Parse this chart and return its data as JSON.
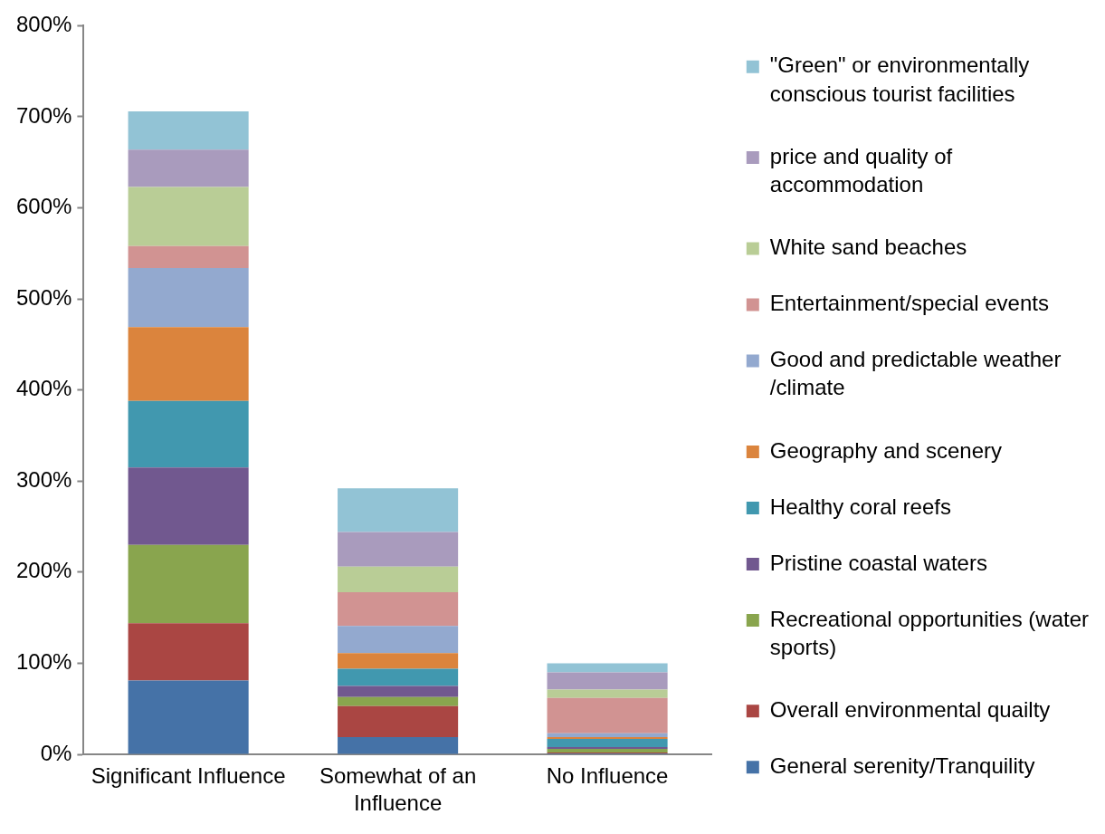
{
  "chart_data": {
    "type": "bar",
    "stacked": true,
    "legend": "right",
    "categories": [
      "Significant Influence",
      "Somewhat of an Influence",
      "No Influence"
    ],
    "ylim": [
      0,
      800
    ],
    "yticks": [
      {
        "value": 0,
        "label": "0%"
      },
      {
        "value": 100,
        "label": "100%"
      },
      {
        "value": 200,
        "label": "200%"
      },
      {
        "value": 300,
        "label": "300%"
      },
      {
        "value": 400,
        "label": "400%"
      },
      {
        "value": 500,
        "label": "500%"
      },
      {
        "value": 600,
        "label": "600%"
      },
      {
        "value": 700,
        "label": "700%"
      },
      {
        "value": 800,
        "label": "800%"
      }
    ],
    "series": [
      {
        "name": "General serenity/Tranquility",
        "color": "#4572a7",
        "values": [
          81,
          19,
          1
        ]
      },
      {
        "name": "Overall environmental quailty",
        "color": "#aa4643",
        "values": [
          63,
          34,
          1
        ]
      },
      {
        "name": "Recreational opportunities (water sports)",
        "color": "#89a54e",
        "values": [
          86,
          10,
          4
        ]
      },
      {
        "name": "Pristine coastal waters",
        "color": "#71588f",
        "values": [
          85,
          12,
          2
        ]
      },
      {
        "name": "Healthy coral reefs",
        "color": "#4198af",
        "values": [
          73,
          19,
          9
        ]
      },
      {
        "name": "Geography and scenery",
        "color": "#db843d",
        "values": [
          81,
          17,
          2
        ]
      },
      {
        "name": "Good and predictable weather /climate",
        "color": "#93a9cf",
        "values": [
          65,
          30,
          4
        ]
      },
      {
        "name": "Entertainment/special events",
        "color": "#d19392",
        "values": [
          24,
          37,
          39
        ]
      },
      {
        "name": "White sand beaches",
        "color": "#b9cd96",
        "values": [
          65,
          28,
          9
        ]
      },
      {
        "name": "price and quality of accommodation",
        "color": "#a99bbd",
        "values": [
          41,
          38,
          19
        ]
      },
      {
        "name": "\"Green\" or environmentally conscious tourist facilities",
        "color": "#92c3d5",
        "values": [
          42,
          48,
          10
        ]
      }
    ]
  }
}
